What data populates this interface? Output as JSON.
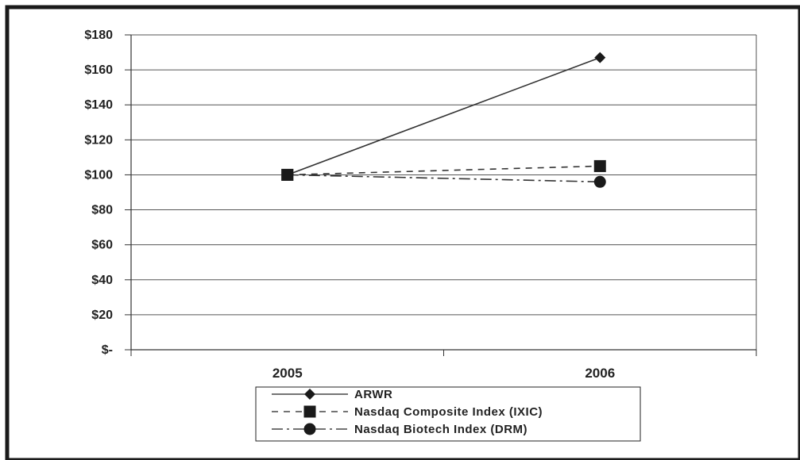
{
  "chart_data": {
    "type": "line",
    "x": [
      "2005",
      "2006"
    ],
    "ylim": [
      0,
      180
    ],
    "yticks": [
      {
        "value": 180,
        "label": "$180"
      },
      {
        "value": 160,
        "label": "$160"
      },
      {
        "value": 140,
        "label": "$140"
      },
      {
        "value": 120,
        "label": "$120"
      },
      {
        "value": 100,
        "label": "$100"
      },
      {
        "value": 80,
        "label": "$80"
      },
      {
        "value": 60,
        "label": "$60"
      },
      {
        "value": 40,
        "label": "$40"
      },
      {
        "value": 20,
        "label": "$20"
      },
      {
        "value": 0,
        "label": "$-"
      }
    ],
    "grid": true,
    "legend_position": "bottom",
    "series": [
      {
        "name": "ARWR",
        "values": [
          100,
          167
        ],
        "marker": "diamond",
        "dash": "solid",
        "color": "#333333"
      },
      {
        "name": "Nasdaq Composite Index (IXIC)",
        "values": [
          100,
          105
        ],
        "marker": "square",
        "dash": "dashed",
        "color": "#333333"
      },
      {
        "name": "Nasdaq Biotech Index (DRM)",
        "values": [
          100,
          96
        ],
        "marker": "circle",
        "dash": "dash-dot",
        "color": "#333333"
      }
    ]
  }
}
